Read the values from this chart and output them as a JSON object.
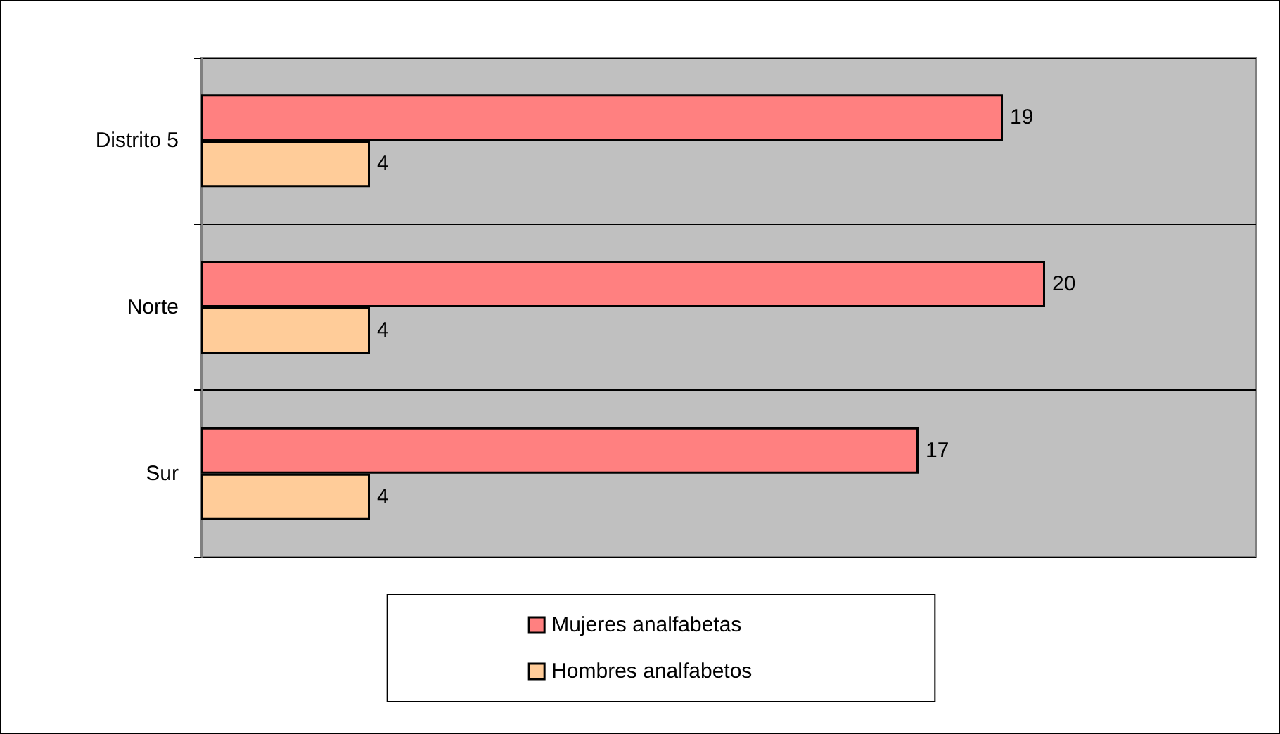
{
  "chart_data": {
    "type": "bar",
    "orientation": "horizontal",
    "categories": [
      "Distrito 5",
      "Norte",
      "Sur"
    ],
    "series": [
      {
        "name": "Mujeres analfabetas",
        "color": "#ff8080",
        "values": [
          19,
          20,
          17
        ]
      },
      {
        "name": "Hombres analfabetos",
        "color": "#ffcc99",
        "values": [
          4,
          4,
          4
        ]
      }
    ],
    "xlim": [
      0,
      25
    ],
    "data_labels": true,
    "grid": "y",
    "legend": "bottom",
    "tick_labels": "y"
  }
}
